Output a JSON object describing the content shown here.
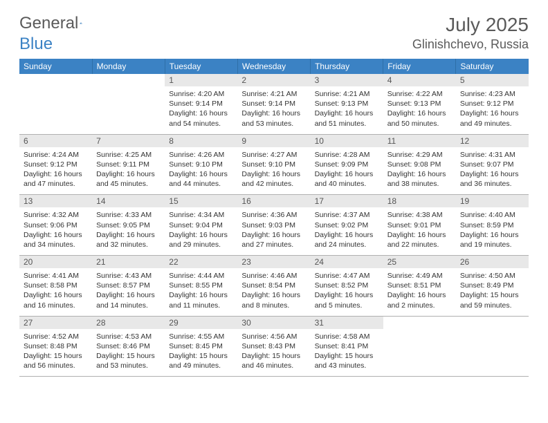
{
  "logo": {
    "general": "General",
    "blue": "Blue"
  },
  "title": "July 2025",
  "location": "Glinishchevo, Russia",
  "colors": {
    "header_bg": "#3b82c4",
    "header_text": "#ffffff",
    "day_num_bg": "#e8e8e8",
    "day_num_text": "#555555",
    "body_text": "#333333",
    "border": "#b0b0b0"
  },
  "day_headers": [
    "Sunday",
    "Monday",
    "Tuesday",
    "Wednesday",
    "Thursday",
    "Friday",
    "Saturday"
  ],
  "weeks": [
    [
      null,
      null,
      {
        "num": "1",
        "sunrise": "Sunrise: 4:20 AM",
        "sunset": "Sunset: 9:14 PM",
        "daylight": "Daylight: 16 hours and 54 minutes."
      },
      {
        "num": "2",
        "sunrise": "Sunrise: 4:21 AM",
        "sunset": "Sunset: 9:14 PM",
        "daylight": "Daylight: 16 hours and 53 minutes."
      },
      {
        "num": "3",
        "sunrise": "Sunrise: 4:21 AM",
        "sunset": "Sunset: 9:13 PM",
        "daylight": "Daylight: 16 hours and 51 minutes."
      },
      {
        "num": "4",
        "sunrise": "Sunrise: 4:22 AM",
        "sunset": "Sunset: 9:13 PM",
        "daylight": "Daylight: 16 hours and 50 minutes."
      },
      {
        "num": "5",
        "sunrise": "Sunrise: 4:23 AM",
        "sunset": "Sunset: 9:12 PM",
        "daylight": "Daylight: 16 hours and 49 minutes."
      }
    ],
    [
      {
        "num": "6",
        "sunrise": "Sunrise: 4:24 AM",
        "sunset": "Sunset: 9:12 PM",
        "daylight": "Daylight: 16 hours and 47 minutes."
      },
      {
        "num": "7",
        "sunrise": "Sunrise: 4:25 AM",
        "sunset": "Sunset: 9:11 PM",
        "daylight": "Daylight: 16 hours and 45 minutes."
      },
      {
        "num": "8",
        "sunrise": "Sunrise: 4:26 AM",
        "sunset": "Sunset: 9:10 PM",
        "daylight": "Daylight: 16 hours and 44 minutes."
      },
      {
        "num": "9",
        "sunrise": "Sunrise: 4:27 AM",
        "sunset": "Sunset: 9:10 PM",
        "daylight": "Daylight: 16 hours and 42 minutes."
      },
      {
        "num": "10",
        "sunrise": "Sunrise: 4:28 AM",
        "sunset": "Sunset: 9:09 PM",
        "daylight": "Daylight: 16 hours and 40 minutes."
      },
      {
        "num": "11",
        "sunrise": "Sunrise: 4:29 AM",
        "sunset": "Sunset: 9:08 PM",
        "daylight": "Daylight: 16 hours and 38 minutes."
      },
      {
        "num": "12",
        "sunrise": "Sunrise: 4:31 AM",
        "sunset": "Sunset: 9:07 PM",
        "daylight": "Daylight: 16 hours and 36 minutes."
      }
    ],
    [
      {
        "num": "13",
        "sunrise": "Sunrise: 4:32 AM",
        "sunset": "Sunset: 9:06 PM",
        "daylight": "Daylight: 16 hours and 34 minutes."
      },
      {
        "num": "14",
        "sunrise": "Sunrise: 4:33 AM",
        "sunset": "Sunset: 9:05 PM",
        "daylight": "Daylight: 16 hours and 32 minutes."
      },
      {
        "num": "15",
        "sunrise": "Sunrise: 4:34 AM",
        "sunset": "Sunset: 9:04 PM",
        "daylight": "Daylight: 16 hours and 29 minutes."
      },
      {
        "num": "16",
        "sunrise": "Sunrise: 4:36 AM",
        "sunset": "Sunset: 9:03 PM",
        "daylight": "Daylight: 16 hours and 27 minutes."
      },
      {
        "num": "17",
        "sunrise": "Sunrise: 4:37 AM",
        "sunset": "Sunset: 9:02 PM",
        "daylight": "Daylight: 16 hours and 24 minutes."
      },
      {
        "num": "18",
        "sunrise": "Sunrise: 4:38 AM",
        "sunset": "Sunset: 9:01 PM",
        "daylight": "Daylight: 16 hours and 22 minutes."
      },
      {
        "num": "19",
        "sunrise": "Sunrise: 4:40 AM",
        "sunset": "Sunset: 8:59 PM",
        "daylight": "Daylight: 16 hours and 19 minutes."
      }
    ],
    [
      {
        "num": "20",
        "sunrise": "Sunrise: 4:41 AM",
        "sunset": "Sunset: 8:58 PM",
        "daylight": "Daylight: 16 hours and 16 minutes."
      },
      {
        "num": "21",
        "sunrise": "Sunrise: 4:43 AM",
        "sunset": "Sunset: 8:57 PM",
        "daylight": "Daylight: 16 hours and 14 minutes."
      },
      {
        "num": "22",
        "sunrise": "Sunrise: 4:44 AM",
        "sunset": "Sunset: 8:55 PM",
        "daylight": "Daylight: 16 hours and 11 minutes."
      },
      {
        "num": "23",
        "sunrise": "Sunrise: 4:46 AM",
        "sunset": "Sunset: 8:54 PM",
        "daylight": "Daylight: 16 hours and 8 minutes."
      },
      {
        "num": "24",
        "sunrise": "Sunrise: 4:47 AM",
        "sunset": "Sunset: 8:52 PM",
        "daylight": "Daylight: 16 hours and 5 minutes."
      },
      {
        "num": "25",
        "sunrise": "Sunrise: 4:49 AM",
        "sunset": "Sunset: 8:51 PM",
        "daylight": "Daylight: 16 hours and 2 minutes."
      },
      {
        "num": "26",
        "sunrise": "Sunrise: 4:50 AM",
        "sunset": "Sunset: 8:49 PM",
        "daylight": "Daylight: 15 hours and 59 minutes."
      }
    ],
    [
      {
        "num": "27",
        "sunrise": "Sunrise: 4:52 AM",
        "sunset": "Sunset: 8:48 PM",
        "daylight": "Daylight: 15 hours and 56 minutes."
      },
      {
        "num": "28",
        "sunrise": "Sunrise: 4:53 AM",
        "sunset": "Sunset: 8:46 PM",
        "daylight": "Daylight: 15 hours and 53 minutes."
      },
      {
        "num": "29",
        "sunrise": "Sunrise: 4:55 AM",
        "sunset": "Sunset: 8:45 PM",
        "daylight": "Daylight: 15 hours and 49 minutes."
      },
      {
        "num": "30",
        "sunrise": "Sunrise: 4:56 AM",
        "sunset": "Sunset: 8:43 PM",
        "daylight": "Daylight: 15 hours and 46 minutes."
      },
      {
        "num": "31",
        "sunrise": "Sunrise: 4:58 AM",
        "sunset": "Sunset: 8:41 PM",
        "daylight": "Daylight: 15 hours and 43 minutes."
      },
      null,
      null
    ]
  ]
}
